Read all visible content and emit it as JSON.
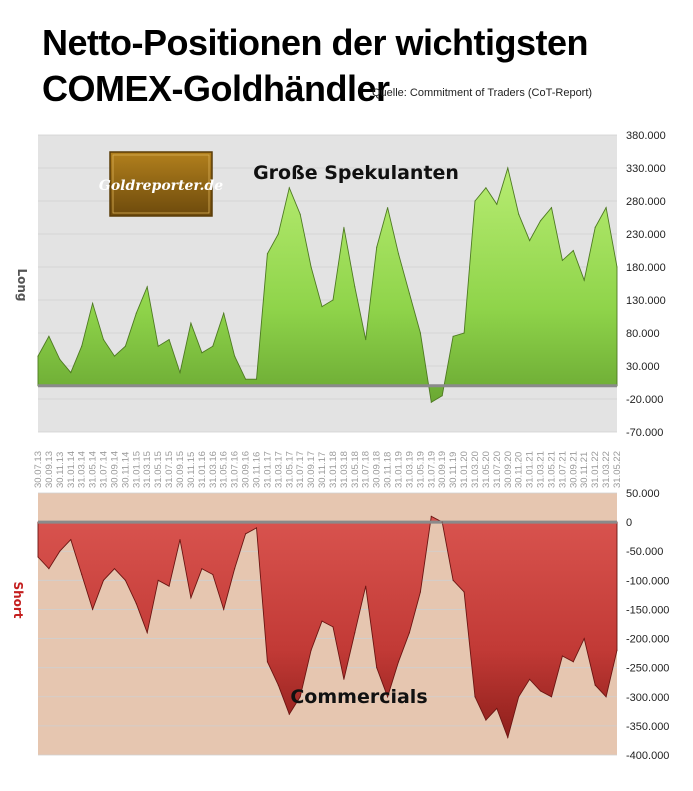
{
  "header": {
    "title_line1": "Netto-Positionen der wichtigsten",
    "title_line2": "COMEX-Goldhändler",
    "source": "Quelle: Commitment of Traders (CoT-Report)"
  },
  "logo": {
    "text": "Goldreporter.de"
  },
  "colors": {
    "spec_fill": "#8fd44a",
    "spec_line": "#4e7a22",
    "comm_fill": "#c23a36",
    "comm_line": "#6b1512",
    "top_bg": "#e3e3e3",
    "bottom_bg": "#e6c6b0",
    "grid": "#cfcfcf",
    "zero_line": "#8a8a8a"
  },
  "chart_data": [
    {
      "type": "area",
      "annotation": "Große Spekulanten",
      "ylabel": "Long",
      "ylim": [
        -70000,
        380000
      ],
      "yticks": [
        "380.000",
        "330.000",
        "280.000",
        "230.000",
        "180.000",
        "130.000",
        "80.000",
        "30.000",
        "-20.000",
        "-70.000"
      ],
      "ytick_values": [
        380000,
        330000,
        280000,
        230000,
        180000,
        130000,
        80000,
        30000,
        -20000,
        -70000
      ],
      "grid": true,
      "x": [
        "30.07.13",
        "30.09.13",
        "30.11.13",
        "31.01.14",
        "31.03.14",
        "31.05.14",
        "31.07.14",
        "30.09.14",
        "30.11.14",
        "31.01.15",
        "31.03.15",
        "31.05.15",
        "31.07.15",
        "30.09.15",
        "30.11.15",
        "31.01.16",
        "31.03.16",
        "31.05.16",
        "31.07.16",
        "30.09.16",
        "30.11.16",
        "31.01.17",
        "31.03.17",
        "31.05.17",
        "31.07.17",
        "30.09.17",
        "30.11.17",
        "31.01.18",
        "31.03.18",
        "31.05.18",
        "31.07.18",
        "30.09.18",
        "30.11.18",
        "31.01.19",
        "31.03.19",
        "31.05.19",
        "31.07.19",
        "30.09.19",
        "30.11.19",
        "31.01.20",
        "31.03.20",
        "31.05.20",
        "31.07.20",
        "30.09.20",
        "30.11.20",
        "31.01.21",
        "31.03.21",
        "31.05.21",
        "31.07.21",
        "30.09.21",
        "30.11.21",
        "31.01.22",
        "31.03.22",
        "31.05.22"
      ],
      "values": [
        45000,
        75000,
        40000,
        20000,
        60000,
        125000,
        70000,
        45000,
        60000,
        110000,
        150000,
        60000,
        70000,
        20000,
        95000,
        50000,
        60000,
        110000,
        45000,
        10000,
        10000,
        200000,
        230000,
        300000,
        260000,
        180000,
        120000,
        130000,
        240000,
        150000,
        70000,
        210000,
        270000,
        200000,
        140000,
        80000,
        -25000,
        -15000,
        75000,
        80000,
        280000,
        300000,
        275000,
        330000,
        260000,
        220000,
        250000,
        270000,
        190000,
        205000,
        160000,
        240000,
        270000,
        180000
      ]
    },
    {
      "type": "area",
      "annotation": "Commercials",
      "ylabel": "Short",
      "ylim": [
        -400000,
        50000
      ],
      "yticks": [
        "50.000",
        "0",
        "-50.000",
        "-100.000",
        "-150.000",
        "-200.000",
        "-250.000",
        "-300.000",
        "-350.000",
        "-400.000"
      ],
      "ytick_values": [
        50000,
        0,
        -50000,
        -100000,
        -150000,
        -200000,
        -250000,
        -300000,
        -350000,
        -400000
      ],
      "grid": true,
      "x": [
        "30.07.13",
        "30.09.13",
        "30.11.13",
        "31.01.14",
        "31.03.14",
        "31.05.14",
        "31.07.14",
        "30.09.14",
        "30.11.14",
        "31.01.15",
        "31.03.15",
        "31.05.15",
        "31.07.15",
        "30.09.15",
        "30.11.15",
        "31.01.16",
        "31.03.16",
        "31.05.16",
        "31.07.16",
        "30.09.16",
        "30.11.16",
        "31.01.17",
        "31.03.17",
        "31.05.17",
        "31.07.17",
        "30.09.17",
        "30.11.17",
        "31.01.18",
        "31.03.18",
        "31.05.18",
        "31.07.18",
        "30.09.18",
        "30.11.18",
        "31.01.19",
        "31.03.19",
        "31.05.19",
        "31.07.19",
        "30.09.19",
        "30.11.19",
        "31.01.20",
        "31.03.20",
        "31.05.20",
        "31.07.20",
        "30.09.20",
        "30.11.20",
        "31.01.21",
        "31.03.21",
        "31.05.21",
        "31.07.21",
        "30.09.21",
        "30.11.21",
        "31.01.22",
        "31.03.22",
        "31.05.22"
      ],
      "values": [
        -60000,
        -80000,
        -50000,
        -30000,
        -90000,
        -150000,
        -100000,
        -80000,
        -100000,
        -140000,
        -190000,
        -100000,
        -110000,
        -30000,
        -130000,
        -80000,
        -90000,
        -150000,
        -80000,
        -20000,
        -10000,
        -240000,
        -280000,
        -330000,
        -300000,
        -220000,
        -170000,
        -180000,
        -270000,
        -190000,
        -110000,
        -250000,
        -300000,
        -240000,
        -190000,
        -120000,
        10000,
        0,
        -100000,
        -120000,
        -300000,
        -340000,
        -320000,
        -370000,
        -300000,
        -270000,
        -290000,
        -300000,
        -230000,
        -240000,
        -200000,
        -280000,
        -300000,
        -220000
      ]
    }
  ]
}
